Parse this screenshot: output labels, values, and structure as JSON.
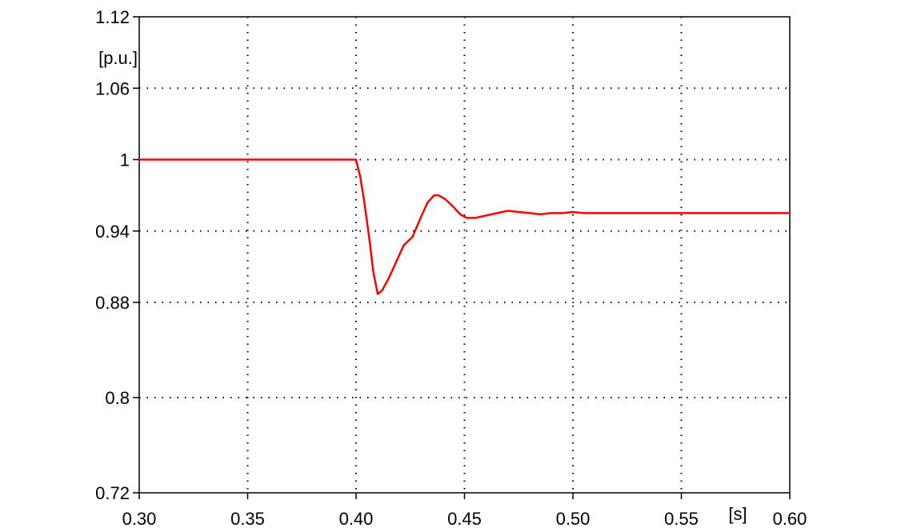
{
  "chart_data": {
    "type": "line",
    "title": "",
    "xlabel": "[s]",
    "ylabel": "[p.u.]",
    "xlim": [
      0.3,
      0.6
    ],
    "ylim": [
      0.72,
      1.12
    ],
    "x_ticks": [
      "0.30",
      "0.35",
      "0.40",
      "0.45",
      "0.50",
      "0.55",
      "0.60"
    ],
    "y_ticks": [
      "0.72",
      "0.8",
      "0.88",
      "0.94",
      "1",
      "1.06",
      "1.12"
    ],
    "grid": true,
    "series": [
      {
        "color": "#ff0000",
        "x": [
          0.3,
          0.32,
          0.35,
          0.38,
          0.4,
          0.402,
          0.404,
          0.406,
          0.408,
          0.41,
          0.412,
          0.415,
          0.418,
          0.422,
          0.426,
          0.43,
          0.433,
          0.436,
          0.438,
          0.441,
          0.445,
          0.448,
          0.451,
          0.455,
          0.46,
          0.465,
          0.47,
          0.475,
          0.48,
          0.485,
          0.49,
          0.495,
          0.5,
          0.505,
          0.51,
          0.52,
          0.53,
          0.54,
          0.55,
          0.56,
          0.57,
          0.58,
          0.59,
          0.6
        ],
        "y": [
          1.0,
          1.0,
          1.0,
          1.0,
          1.0,
          0.985,
          0.962,
          0.935,
          0.905,
          0.887,
          0.89,
          0.9,
          0.912,
          0.928,
          0.935,
          0.952,
          0.964,
          0.97,
          0.97,
          0.967,
          0.96,
          0.954,
          0.951,
          0.951,
          0.953,
          0.955,
          0.957,
          0.956,
          0.955,
          0.954,
          0.955,
          0.955,
          0.956,
          0.955,
          0.955,
          0.955,
          0.955,
          0.955,
          0.955,
          0.955,
          0.955,
          0.955,
          0.955,
          0.955
        ]
      }
    ]
  }
}
